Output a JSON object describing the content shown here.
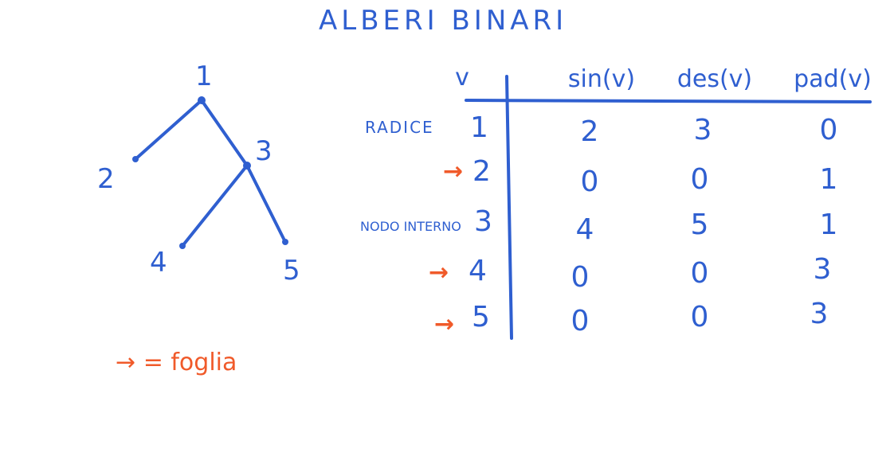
{
  "title": "ALBERI BINARI",
  "tree": {
    "nodes": [
      {
        "id": "1"
      },
      {
        "id": "2"
      },
      {
        "id": "3"
      },
      {
        "id": "4"
      },
      {
        "id": "5"
      }
    ],
    "edges": [
      [
        "1",
        "2"
      ],
      [
        "1",
        "3"
      ],
      [
        "3",
        "4"
      ],
      [
        "3",
        "5"
      ]
    ]
  },
  "table": {
    "headers": [
      "v",
      "sin(v)",
      "des(v)",
      "pad(v)"
    ],
    "rows": [
      {
        "label": "RADICE",
        "leaf": false,
        "node": "1",
        "sin": "2",
        "des": "3",
        "pad": "0"
      },
      {
        "label": "",
        "leaf": true,
        "node": "2",
        "sin": "0",
        "des": "0",
        "pad": "1"
      },
      {
        "label": "NODO INTERNO",
        "leaf": false,
        "node": "3",
        "sin": "4",
        "des": "5",
        "pad": "1"
      },
      {
        "label": "",
        "leaf": true,
        "node": "4",
        "sin": "0",
        "des": "0",
        "pad": "3"
      },
      {
        "label": "",
        "leaf": true,
        "node": "5",
        "sin": "0",
        "des": "0",
        "pad": "3"
      }
    ]
  },
  "legend": {
    "symbol": "→",
    "text": "= foglia"
  },
  "colors": {
    "ink": "#2f5fd0",
    "accent": "#f05a2a"
  }
}
